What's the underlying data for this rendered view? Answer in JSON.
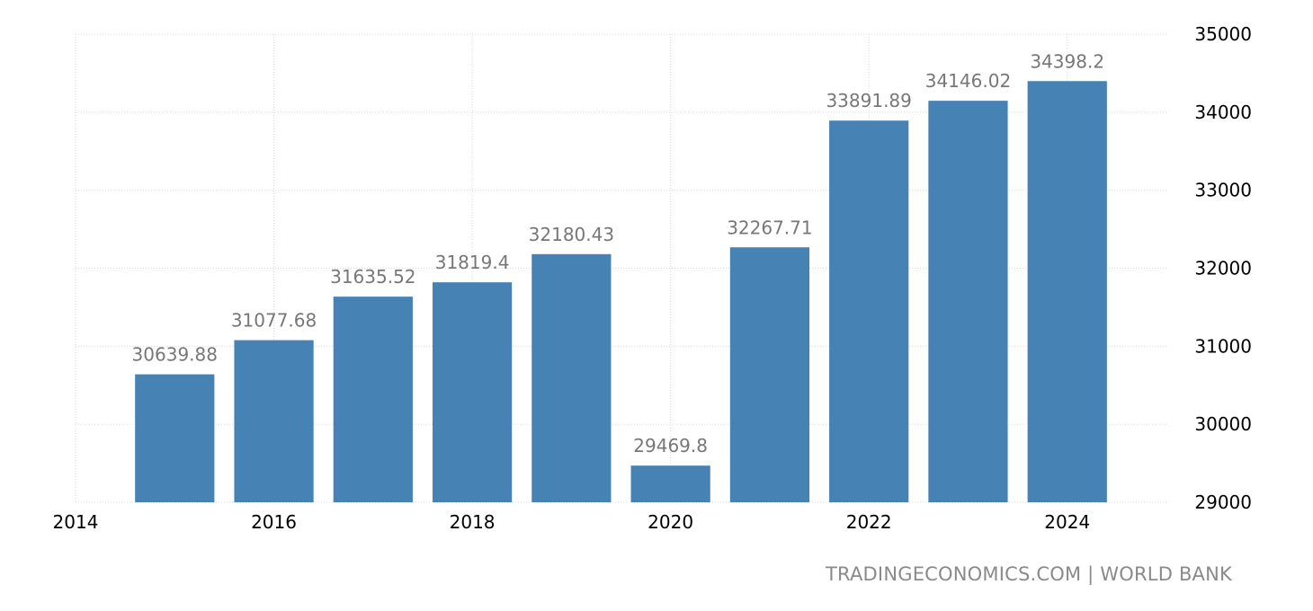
{
  "source": {
    "text": "TRADINGECONOMICS.COM | WORLD BANK"
  },
  "chart_data": {
    "type": "bar",
    "title": "",
    "xlabel": "",
    "ylabel": "",
    "x": [
      2015,
      2016,
      2017,
      2018,
      2019,
      2020,
      2021,
      2022,
      2023,
      2024
    ],
    "values": [
      30639.88,
      31077.68,
      31635.52,
      31819.4,
      32180.43,
      29469.8,
      32267.71,
      33891.89,
      34146.02,
      34398.2
    ],
    "data_labels": [
      "30639.88",
      "31077.68",
      "31635.52",
      "31819.4",
      "32180.43",
      "29469.8",
      "32267.71",
      "33891.89",
      "34146.02",
      "34398.2"
    ],
    "xlim": [
      2014,
      2025
    ],
    "x_ticks": [
      "2014",
      "2016",
      "2018",
      "2020",
      "2022",
      "2024"
    ],
    "ylim": [
      29000,
      35000
    ],
    "y_ticks": [
      "29000",
      "30000",
      "31000",
      "32000",
      "33000",
      "34000",
      "35000"
    ],
    "y_axis_side": "right",
    "grid": true,
    "bar_color": "#4682b4",
    "label_color": "#777777"
  }
}
